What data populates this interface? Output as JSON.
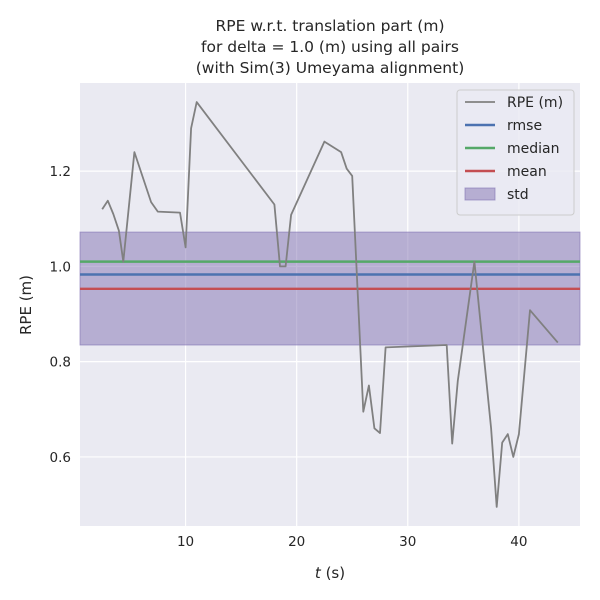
{
  "chart_data": {
    "type": "line",
    "title_lines": [
      "RPE w.r.t. translation part (m)",
      "for delta = 1.0 (m) using all pairs",
      "(with Sim(3) Umeyama alignment)"
    ],
    "xlabel_italic": "t",
    "xlabel_rest": " (s)",
    "ylabel": "RPE (m)",
    "xlim": [
      0.5,
      45.5
    ],
    "ylim": [
      0.455,
      1.385
    ],
    "xticks": [
      10,
      20,
      30,
      40
    ],
    "yticks": [
      0.6,
      0.8,
      1.0,
      1.2
    ],
    "grid": true,
    "legend_position": "top-right",
    "series": [
      {
        "name": "RPE (m)",
        "color": "#808080",
        "x": [
          2.5,
          3.0,
          3.5,
          4.0,
          4.4,
          5.4,
          6.9,
          7.5,
          9.5,
          10.0,
          10.5,
          11.0,
          18.0,
          18.5,
          19.0,
          19.5,
          22.5,
          24.0,
          24.5,
          25.0,
          26.0,
          26.5,
          27.0,
          27.5,
          28.0,
          33.5,
          34.0,
          34.5,
          36.0,
          37.5,
          38.0,
          38.5,
          39.0,
          39.5,
          40.0,
          41.0,
          43.5
        ],
        "y": [
          1.12,
          1.138,
          1.11,
          1.075,
          1.01,
          1.24,
          1.135,
          1.115,
          1.113,
          1.04,
          1.29,
          1.345,
          1.13,
          1.0,
          1.0,
          1.108,
          1.262,
          1.24,
          1.205,
          1.19,
          0.695,
          0.75,
          0.66,
          0.65,
          0.83,
          0.835,
          0.628,
          0.76,
          1.01,
          0.66,
          0.495,
          0.63,
          0.648,
          0.6,
          0.648,
          0.908,
          0.84
        ]
      }
    ],
    "stats": [
      {
        "name": "rmse",
        "value": 0.983,
        "color": "#4c72b0"
      },
      {
        "name": "median",
        "value": 1.01,
        "color": "#55a868"
      },
      {
        "name": "mean",
        "value": 0.953,
        "color": "#c44e52"
      }
    ],
    "std_band": {
      "name": "std",
      "low": 0.835,
      "high": 1.072,
      "color": "#8172b2"
    }
  }
}
